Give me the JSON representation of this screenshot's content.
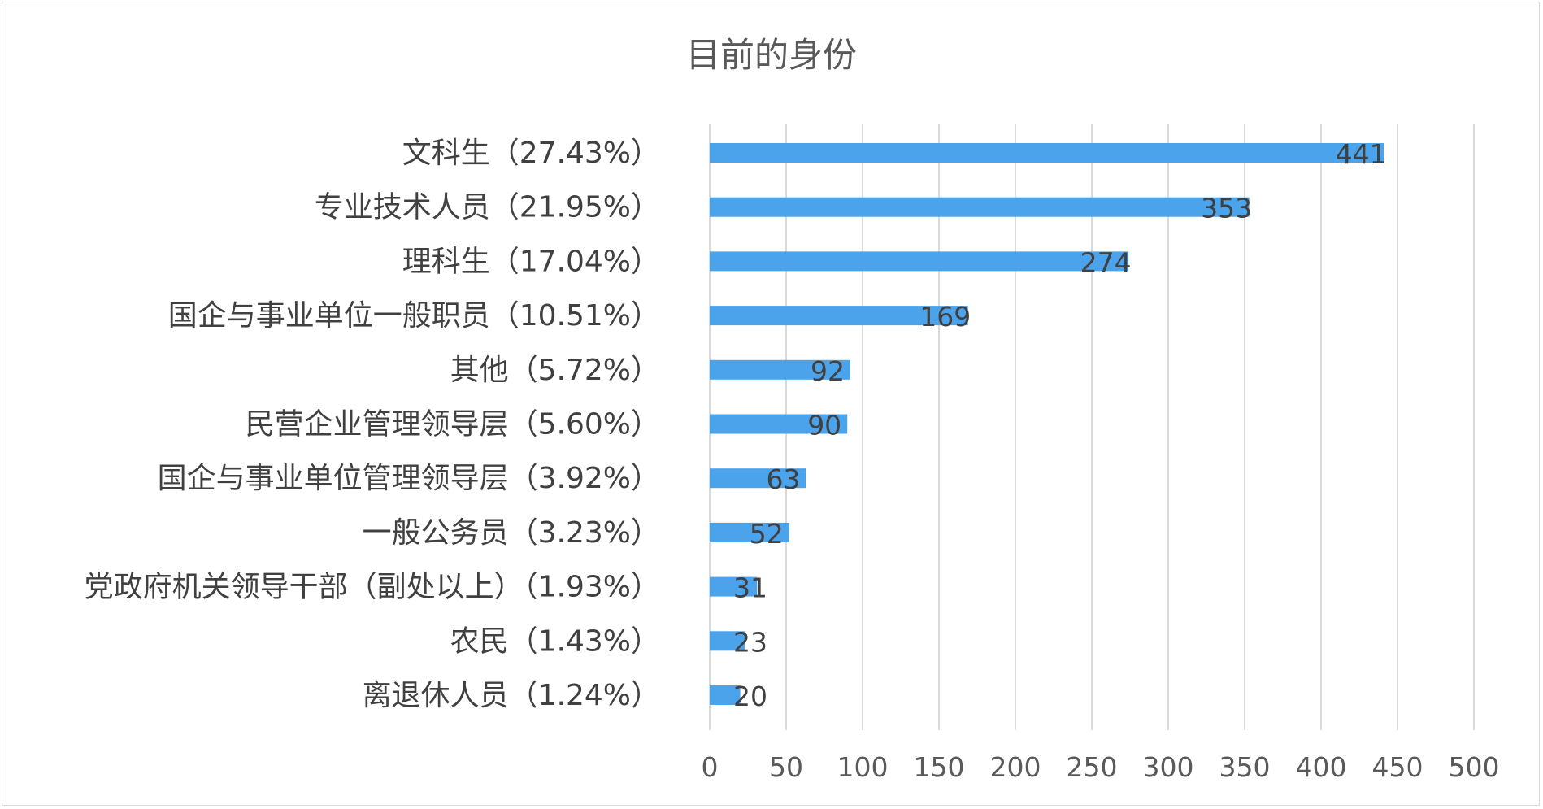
{
  "chart_data": {
    "type": "bar",
    "orientation": "horizontal",
    "title": "目前的身份",
    "categories": [
      "文科生（27.43%）",
      "专业技术人员（21.95%）",
      "理科生（17.04%）",
      "国企与事业单位一般职员（10.51%）",
      "其他（5.72%）",
      "民营企业管理领导层（5.60%）",
      "国企与事业单位管理领导层（3.92%）",
      "一般公务员（3.23%）",
      "党政府机关领导干部（副处以上）（1.93%）",
      "农民（1.43%）",
      "离退休人员（1.24%）"
    ],
    "values": [
      441,
      353,
      274,
      169,
      92,
      90,
      63,
      52,
      31,
      23,
      20
    ],
    "data_labels": [
      "441",
      "353",
      "274",
      "169",
      "92",
      "90",
      "63",
      "52",
      "31",
      "23",
      "20"
    ],
    "xlim": [
      0,
      500
    ],
    "x_ticks": [
      0,
      50,
      100,
      150,
      200,
      250,
      300,
      350,
      400,
      450,
      500
    ],
    "x_tick_labels": [
      "0",
      "50",
      "100",
      "150",
      "200",
      "250",
      "300",
      "350",
      "400",
      "450",
      "500"
    ],
    "grid": "vertical",
    "legend": "none",
    "colors": {
      "bar": "#4aa3eb",
      "grid": "#d9d9d9",
      "border": "#d9d9d9"
    }
  }
}
